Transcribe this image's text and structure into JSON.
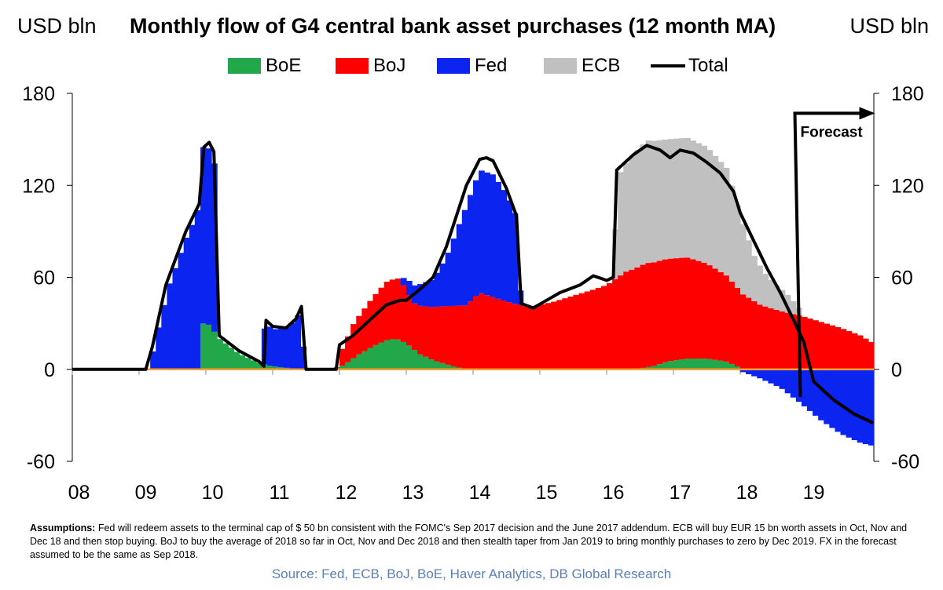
{
  "header": {
    "title": "Monthly flow of G4 central bank asset purchases (12 month MA)",
    "units_left": "USD bln",
    "units_right": "USD bln"
  },
  "legend": [
    {
      "key": "boe",
      "label": "BoE",
      "color": "#22a84a"
    },
    {
      "key": "boj",
      "label": "BoJ",
      "color": "#ff0000"
    },
    {
      "key": "fed",
      "label": "Fed",
      "color": "#0b24f0"
    },
    {
      "key": "ecb",
      "label": "ECB",
      "color": "#c0c0c0"
    },
    {
      "key": "total",
      "label": "Total",
      "color": "#000000"
    }
  ],
  "annotation": {
    "forecast": "Forecast"
  },
  "footnote": {
    "bold": "Assumptions:",
    "text": " Fed will redeem assets to the terminal cap of $ 50 bn consistent with the FOMC's Sep 2017 decision and the June 2017 addendum. ECB will buy EUR 15 bn worth assets in Oct, Nov and Dec 18 and then stop buying. BoJ to buy the average of 2018 so far in Oct, Nov and Dec 2018 and then stealth taper from Jan 2019 to bring monthly purchases to zero by Dec 2019. FX in the forecast assumed to be the same as Sep 2018."
  },
  "source": "Source: Fed, ECB, BoJ, BoE, Haver Analytics, DB Global Research",
  "chart_data": {
    "type": "area",
    "stacked": true,
    "title": "Monthly flow of G4 central bank asset purchases (12 month MA)",
    "ylabel": "USD bln",
    "ylim": [
      -60,
      180
    ],
    "yticks": [
      -60,
      0,
      60,
      120,
      180
    ],
    "y_tick_labels": [
      "-60",
      "0",
      "60",
      "120",
      "180"
    ],
    "xlim": [
      2008,
      2020
    ],
    "x_tick_labels": [
      "08",
      "09",
      "10",
      "11",
      "12",
      "13",
      "14",
      "15",
      "16",
      "17",
      "18",
      "19"
    ],
    "forecast_start": 2018.9,
    "legend_position": "top",
    "series": [
      {
        "name": "BoE",
        "color": "#22a84a",
        "points": [
          [
            2008,
            0
          ],
          [
            2009.9,
            0
          ],
          [
            2009.95,
            30
          ],
          [
            2010.05,
            29
          ],
          [
            2010.2,
            20
          ],
          [
            2010.5,
            10
          ],
          [
            2010.8,
            4
          ],
          [
            2011.0,
            2
          ],
          [
            2011.2,
            1
          ],
          [
            2011.4,
            0
          ],
          [
            2011.95,
            0
          ],
          [
            2012.1,
            4
          ],
          [
            2012.3,
            10
          ],
          [
            2012.5,
            15
          ],
          [
            2012.7,
            19
          ],
          [
            2012.85,
            20
          ],
          [
            2013.0,
            17
          ],
          [
            2013.2,
            10
          ],
          [
            2013.4,
            6
          ],
          [
            2013.7,
            2
          ],
          [
            2013.9,
            0
          ],
          [
            2016.4,
            0
          ],
          [
            2016.7,
            2
          ],
          [
            2016.9,
            5
          ],
          [
            2017.2,
            7
          ],
          [
            2017.5,
            7
          ],
          [
            2017.8,
            5
          ],
          [
            2017.95,
            2
          ],
          [
            2018.05,
            0
          ],
          [
            2019.99,
            0
          ]
        ]
      },
      {
        "name": "BoJ",
        "color": "#ff0000",
        "points": [
          [
            2008,
            0
          ],
          [
            2011.95,
            0
          ],
          [
            2012.0,
            8
          ],
          [
            2012.2,
            22
          ],
          [
            2012.5,
            32
          ],
          [
            2012.7,
            38
          ],
          [
            2012.9,
            40
          ],
          [
            2013.1,
            30
          ],
          [
            2013.3,
            33
          ],
          [
            2013.6,
            38
          ],
          [
            2013.9,
            42
          ],
          [
            2014.1,
            50
          ],
          [
            2014.3,
            47
          ],
          [
            2014.6,
            43
          ],
          [
            2014.8,
            41
          ],
          [
            2015.0,
            42
          ],
          [
            2015.2,
            44
          ],
          [
            2015.5,
            48
          ],
          [
            2015.8,
            52
          ],
          [
            2016.0,
            55
          ],
          [
            2016.3,
            64
          ],
          [
            2016.6,
            68
          ],
          [
            2016.9,
            67
          ],
          [
            2017.2,
            66
          ],
          [
            2017.5,
            62
          ],
          [
            2017.8,
            56
          ],
          [
            2018.0,
            50
          ],
          [
            2018.3,
            42
          ],
          [
            2018.6,
            38
          ],
          [
            2018.9,
            35
          ],
          [
            2019.2,
            31
          ],
          [
            2019.5,
            27
          ],
          [
            2019.8,
            22
          ],
          [
            2019.99,
            17
          ]
        ]
      },
      {
        "name": "Fed",
        "color": "#0b24f0",
        "points": [
          [
            2008,
            0
          ],
          [
            2009.15,
            0
          ],
          [
            2009.25,
            20
          ],
          [
            2009.45,
            55
          ],
          [
            2009.7,
            85
          ],
          [
            2009.85,
            100
          ],
          [
            2009.95,
            115
          ],
          [
            2010.05,
            115
          ],
          [
            2010.15,
            108
          ],
          [
            2010.18,
            0
          ],
          [
            2010.85,
            0
          ],
          [
            2010.88,
            28
          ],
          [
            2011.0,
            24
          ],
          [
            2011.2,
            26
          ],
          [
            2011.35,
            32
          ],
          [
            2011.42,
            41
          ],
          [
            2011.48,
            0
          ],
          [
            2012.9,
            0
          ],
          [
            2013.0,
            8
          ],
          [
            2013.2,
            14
          ],
          [
            2013.4,
            18
          ],
          [
            2013.6,
            32
          ],
          [
            2013.9,
            65
          ],
          [
            2014.1,
            80
          ],
          [
            2014.3,
            80
          ],
          [
            2014.5,
            70
          ],
          [
            2014.65,
            57
          ],
          [
            2014.72,
            0
          ],
          [
            2017.95,
            0
          ],
          [
            2018.05,
            -2
          ],
          [
            2018.3,
            -6
          ],
          [
            2018.6,
            -12
          ],
          [
            2018.9,
            -22
          ],
          [
            2019.2,
            -33
          ],
          [
            2019.5,
            -42
          ],
          [
            2019.8,
            -48
          ],
          [
            2019.99,
            -50
          ]
        ]
      },
      {
        "name": "ECB",
        "color": "#c0c0c0",
        "points": [
          [
            2008,
            0
          ],
          [
            2016.1,
            0
          ],
          [
            2016.15,
            65
          ],
          [
            2016.4,
            75
          ],
          [
            2016.6,
            80
          ],
          [
            2016.9,
            78
          ],
          [
            2017.2,
            78
          ],
          [
            2017.5,
            76
          ],
          [
            2017.8,
            70
          ],
          [
            2018.0,
            50
          ],
          [
            2018.2,
            30
          ],
          [
            2018.4,
            20
          ],
          [
            2018.7,
            12
          ],
          [
            2018.9,
            4
          ],
          [
            2018.95,
            0
          ],
          [
            2019.99,
            0
          ]
        ]
      }
    ],
    "total": {
      "name": "Total",
      "color": "#000000",
      "points": [
        [
          2008,
          0
        ],
        [
          2009.1,
          0
        ],
        [
          2009.2,
          15
        ],
        [
          2009.4,
          55
        ],
        [
          2009.7,
          90
        ],
        [
          2009.9,
          108
        ],
        [
          2009.97,
          145
        ],
        [
          2010.05,
          148
        ],
        [
          2010.12,
          142
        ],
        [
          2010.2,
          22
        ],
        [
          2010.5,
          12
        ],
        [
          2010.8,
          5
        ],
        [
          2010.87,
          2
        ],
        [
          2010.9,
          32
        ],
        [
          2011.0,
          28
        ],
        [
          2011.2,
          27
        ],
        [
          2011.35,
          33
        ],
        [
          2011.43,
          41
        ],
        [
          2011.5,
          0
        ],
        [
          2011.95,
          0
        ],
        [
          2012.0,
          16
        ],
        [
          2012.2,
          22
        ],
        [
          2012.5,
          34
        ],
        [
          2012.7,
          42
        ],
        [
          2012.9,
          45
        ],
        [
          2013.0,
          45
        ],
        [
          2013.2,
          52
        ],
        [
          2013.4,
          60
        ],
        [
          2013.6,
          80
        ],
        [
          2013.9,
          120
        ],
        [
          2014.1,
          137
        ],
        [
          2014.2,
          138
        ],
        [
          2014.3,
          136
        ],
        [
          2014.5,
          118
        ],
        [
          2014.65,
          100
        ],
        [
          2014.72,
          43
        ],
        [
          2014.9,
          40
        ],
        [
          2015.1,
          45
        ],
        [
          2015.3,
          50
        ],
        [
          2015.6,
          55
        ],
        [
          2015.8,
          61
        ],
        [
          2016.0,
          58
        ],
        [
          2016.1,
          60
        ],
        [
          2016.15,
          130
        ],
        [
          2016.4,
          140
        ],
        [
          2016.6,
          146
        ],
        [
          2016.8,
          143
        ],
        [
          2016.95,
          138
        ],
        [
          2017.1,
          143
        ],
        [
          2017.3,
          141
        ],
        [
          2017.5,
          135
        ],
        [
          2017.7,
          128
        ],
        [
          2017.9,
          116
        ],
        [
          2018.0,
          102
        ],
        [
          2018.2,
          84
        ],
        [
          2018.4,
          66
        ],
        [
          2018.6,
          50
        ],
        [
          2018.8,
          32
        ],
        [
          2018.95,
          18
        ],
        [
          2019.1,
          -8
        ],
        [
          2019.4,
          -20
        ],
        [
          2019.7,
          -29
        ],
        [
          2019.99,
          -35
        ]
      ]
    }
  }
}
